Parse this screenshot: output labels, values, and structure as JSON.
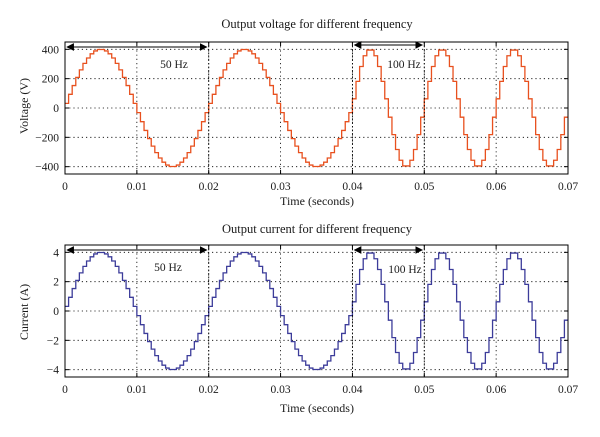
{
  "chart_data": [
    {
      "type": "line",
      "title": "Output voltage for different frequency",
      "xlabel": "Time (seconds)",
      "ylabel": "Voltage (V)",
      "xlim": [
        0,
        0.07
      ],
      "ylim": [
        -450,
        450
      ],
      "xticks": [
        0,
        0.01,
        0.02,
        0.03,
        0.04,
        0.05,
        0.06,
        0.07
      ],
      "xtick_labels": [
        "0",
        "0.01",
        "0.02",
        "0.03",
        "0.04",
        "0.05",
        "0.06",
        "0.07"
      ],
      "yticks": [
        400,
        200,
        0,
        -200,
        -400
      ],
      "ytick_labels": [
        "400",
        "200",
        "0",
        "−200",
        "−400"
      ],
      "grid": true,
      "line_color": "#e8501e",
      "series": [
        {
          "amplitude": 400,
          "segments": [
            {
              "t_start": 0.0,
              "t_end": 0.04,
              "frequency_hz": 50
            },
            {
              "t_start": 0.04,
              "t_end": 0.07,
              "frequency_hz": 100
            }
          ]
        }
      ],
      "annotations": [
        {
          "text": "50 Hz",
          "arrow_from": 0.0,
          "arrow_to": 0.02
        },
        {
          "text": "100 Hz",
          "arrow_from": 0.04,
          "arrow_to": 0.05
        }
      ]
    },
    {
      "type": "line",
      "title": "Output current for different frequency",
      "xlabel": "Time (seconds)",
      "ylabel": "Current (A)",
      "xlim": [
        0,
        0.07
      ],
      "ylim": [
        -4.5,
        4.5
      ],
      "xticks": [
        0,
        0.01,
        0.02,
        0.03,
        0.04,
        0.05,
        0.06,
        0.07
      ],
      "xtick_labels": [
        "0",
        "0.01",
        "0.02",
        "0.03",
        "0.04",
        "0.05",
        "0.06",
        "0.07"
      ],
      "yticks": [
        4,
        2,
        0,
        -2,
        -4
      ],
      "ytick_labels": [
        "4",
        "2",
        "0",
        "−2",
        "−4"
      ],
      "grid": true,
      "line_color": "#3c3c9a",
      "series": [
        {
          "amplitude": 4,
          "segments": [
            {
              "t_start": 0.0,
              "t_end": 0.04,
              "frequency_hz": 50
            },
            {
              "t_start": 0.04,
              "t_end": 0.07,
              "frequency_hz": 100
            }
          ]
        }
      ],
      "annotations": [
        {
          "text": "50 Hz",
          "arrow_from": 0.0,
          "arrow_to": 0.02
        },
        {
          "text": "100 Hz",
          "arrow_from": 0.04,
          "arrow_to": 0.05
        }
      ]
    }
  ]
}
